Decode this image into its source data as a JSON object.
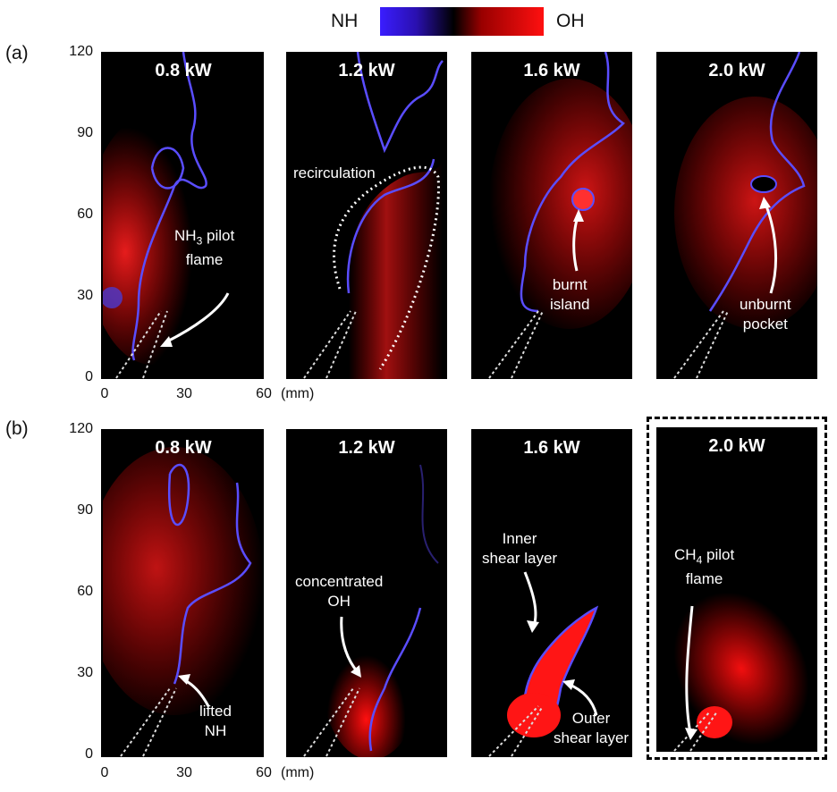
{
  "legend": {
    "left_label": "NH",
    "right_label": "OH"
  },
  "row_a": {
    "label": "(a)",
    "y_ticks": [
      "120",
      "90",
      "60",
      "30",
      "0"
    ],
    "x_ticks": [
      "0",
      "30",
      "60"
    ],
    "x_unit": "(mm)",
    "panels": [
      {
        "power": "0.8 kW",
        "annotations": [
          "NH",
          "pilot",
          "flame"
        ]
      },
      {
        "power": "1.2 kW",
        "annotations": [
          "recirculation"
        ]
      },
      {
        "power": "1.6 kW",
        "annotations": [
          "burnt",
          "island"
        ]
      },
      {
        "power": "2.0 kW",
        "annotations": [
          "unburnt",
          "pocket"
        ]
      }
    ],
    "subscript": "3"
  },
  "row_b": {
    "label": "(b)",
    "y_ticks": [
      "120",
      "90",
      "60",
      "30",
      "0"
    ],
    "x_ticks": [
      "0",
      "30",
      "60"
    ],
    "x_unit": "(mm)",
    "panels": [
      {
        "power": "0.8 kW",
        "annotations": [
          "lifted",
          "NH"
        ]
      },
      {
        "power": "1.2 kW",
        "annotations": [
          "concentrated",
          "OH"
        ]
      },
      {
        "power": "1.6 kW",
        "annotations": [
          "Inner",
          "shear layer",
          "Outer",
          "shear layer"
        ]
      },
      {
        "power": "2.0 kW",
        "annotations": [
          "CH",
          "pilot",
          "flame"
        ]
      }
    ],
    "subscript": "4"
  }
}
